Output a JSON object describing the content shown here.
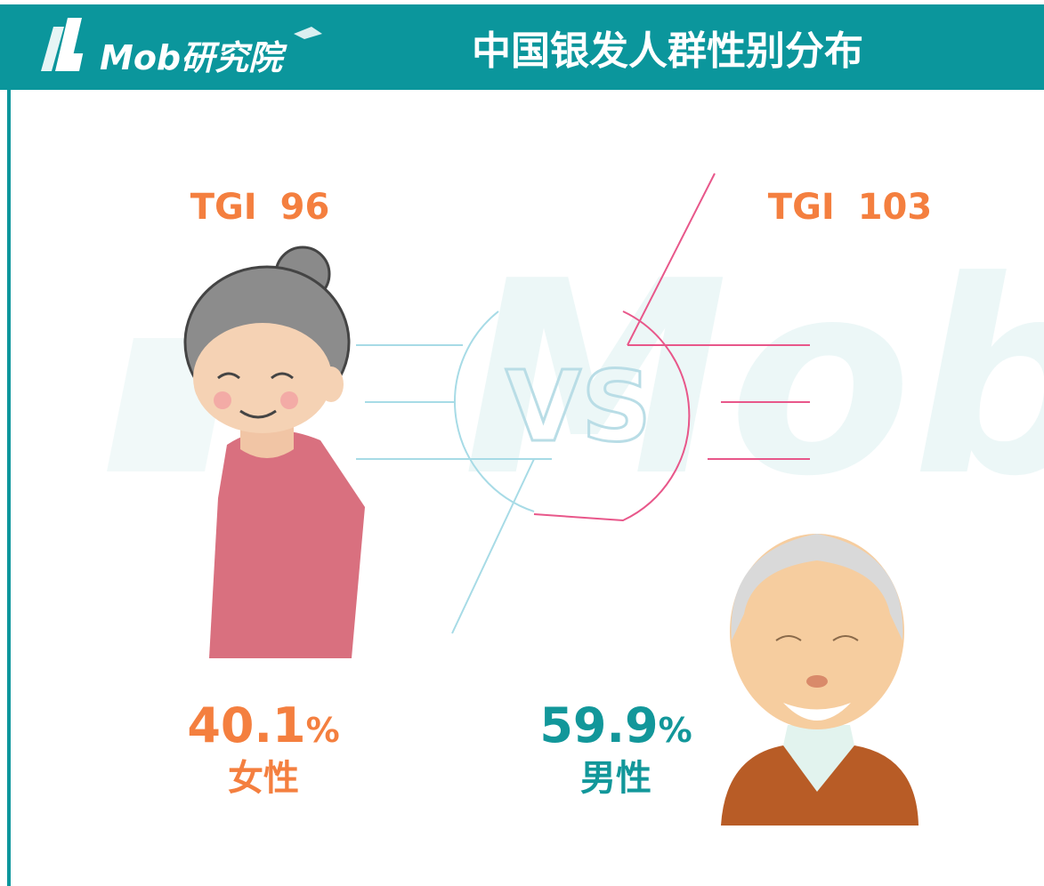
{
  "header": {
    "brand": "Mob研究院",
    "title": "中国银发人群性别分布"
  },
  "watermark": "Mob",
  "vs": "VS",
  "groups": [
    {
      "label": "女性",
      "tgi_label": "TGI",
      "tgi": 96,
      "share": 40.1,
      "unit": "%"
    },
    {
      "label": "男性",
      "tgi_label": "TGI",
      "tgi": 103,
      "share": 59.9,
      "unit": "%"
    }
  ]
}
